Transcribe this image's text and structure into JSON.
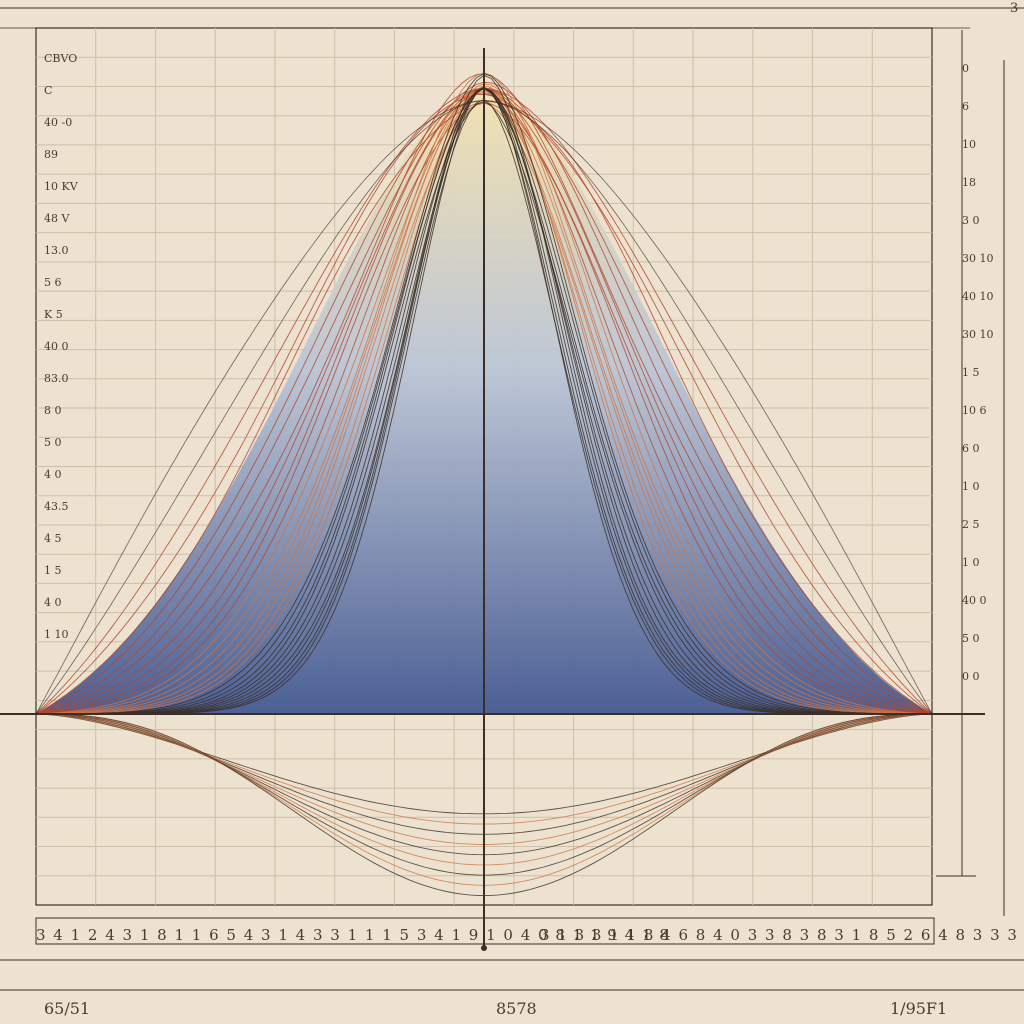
{
  "theme": {
    "paper": "#ece2cf",
    "ink": "#3a2e26",
    "grid": "#cdbfa8",
    "red_curve": "#b5452a",
    "orange_curve": "#d2733e",
    "fill_top": "#f3e2b0",
    "fill_mid": "#b9c4d6",
    "fill_bottom": "#3f5590"
  },
  "chart_data": {
    "type": "line",
    "title": "",
    "xlabel": "",
    "ylabel": "",
    "xlim": [
      -1,
      1
    ],
    "ylim": [
      -0.3,
      1.0
    ],
    "grid": true,
    "legend": "none",
    "center_line_x": 0,
    "baseline_y": 0,
    "upper_family": {
      "shape": "bell",
      "peak_x": 0,
      "peak_y": 1.0,
      "curve_count": 28,
      "outer_envelope": {
        "x": [
          -1.0,
          -0.75,
          -0.5,
          -0.25,
          0.0,
          0.25,
          0.5,
          0.75,
          1.0
        ],
        "y": [
          0.0,
          0.18,
          0.55,
          0.85,
          1.0,
          0.85,
          0.55,
          0.18,
          0.0
        ]
      },
      "inner_envelope": {
        "x": [
          -1.0,
          -0.75,
          -0.5,
          -0.25,
          0.0,
          0.25,
          0.5,
          0.75,
          1.0
        ],
        "y": [
          0.0,
          0.05,
          0.2,
          0.6,
          1.0,
          0.6,
          0.2,
          0.05,
          0.0
        ]
      }
    },
    "lower_family": {
      "shape": "inverted-bell",
      "min_x": 0,
      "min_y": -0.29,
      "curve_count": 9
    },
    "left_tick_labels": [
      "CBVO",
      "C",
      "40 -0",
      "89",
      "10 KV",
      "48 V",
      "13.0",
      "5 6",
      "K 5",
      "40 0",
      "83.0",
      "8 0",
      "5 0",
      "4 0",
      "43.5",
      "4 5",
      "1 5",
      "4 0",
      "1 10"
    ],
    "right_tick_labels": [
      "0",
      "6",
      "10",
      "18",
      "3 0",
      "30 10",
      "40 10",
      "30 10",
      "1 5",
      "10 6",
      "6 0",
      "1 0",
      "2 5",
      "1 0",
      "40 0",
      "5 0",
      "0 0"
    ],
    "bottom_scale_left": "3  4 1 2 4 3 1 8 1 1 6 5 4 3 1 4 3 3 1 1 1 5 3 4 1 9 1 0 4 0 8 1 1 9 4 1 8",
    "bottom_scale_right": "3 1 3 3 1 1 8 4 6 8 4 0 3 3 8 3 8 3 1 8 5 2 6 4 8 3 3 3 4",
    "footer_left": "65/51",
    "footer_center": "8578",
    "footer_right": "1/95F1",
    "top_right_mark": "3"
  }
}
